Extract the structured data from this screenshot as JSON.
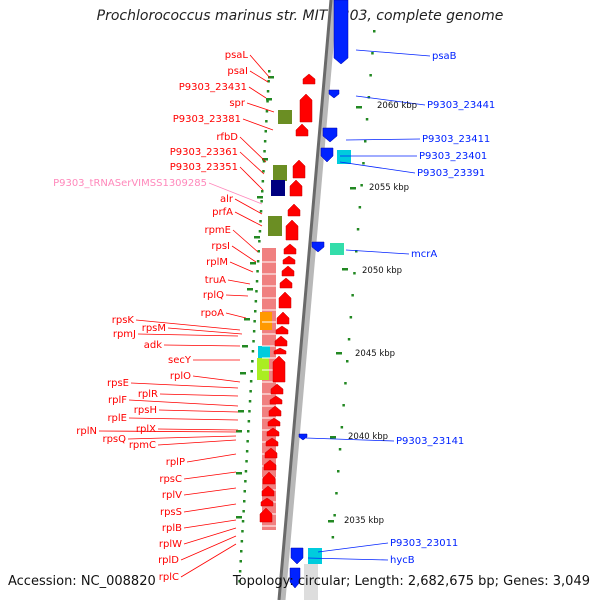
{
  "title": "Prochlorococcus marinus str. MIT 9303, complete genome",
  "accession": "Accession: NC_008820",
  "topology": "Topology: circular; Length: 2,682,675 bp; Genes: 3,049",
  "colors": {
    "forward_gene": "#ff0000",
    "reverse_gene": "#0022ff",
    "trna_label": "#ff88bb",
    "backbone": "#888888",
    "tick": "#228822",
    "cog_olive": "#6b8e23",
    "cog_navy": "#000080",
    "cog_salmon": "#f08080",
    "cog_orange": "#ff9900",
    "cog_cyan": "#00ccdd",
    "cog_lime": "#aaee22"
  },
  "scale_labels": [
    "2060 kbp",
    "2055 kbp",
    "2050 kbp",
    "2045 kbp",
    "2040 kbp",
    "2035 kbp"
  ],
  "forward_genes": [
    "psaL",
    "psaI",
    "P9303_23431",
    "spr",
    "P9303_23381",
    "rfbD",
    "P9303_23361",
    "P9303_23351",
    "P9303_tRNASerVIMSS1309285",
    "alr",
    "prfA",
    "rpmE",
    "rpsI",
    "rplM",
    "truA",
    "rplQ",
    "rpoA",
    "rpsK",
    "rpsM",
    "rpmJ",
    "adk",
    "secY",
    "rplO",
    "rpsE",
    "rplR",
    "rplF",
    "rpsH",
    "rplE",
    "rplX",
    "rplN",
    "rpsQ",
    "rpmC",
    "rplP",
    "rpsC",
    "rplV",
    "rpsS",
    "rplB",
    "rplW",
    "rplD",
    "rplC"
  ],
  "reverse_genes": [
    "psaB",
    "P9303_23441",
    "P9303_23411",
    "P9303_23401",
    "P9303_23391",
    "mcrA",
    "P9303_23141",
    "P9303_23011",
    "hycB"
  ]
}
